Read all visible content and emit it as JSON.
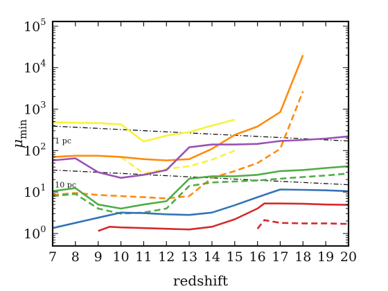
{
  "chart_data": {
    "type": "line",
    "xlabel": "redshift",
    "ylabel": "μ",
    "ylabel_sub": "min",
    "xlim": [
      7,
      20
    ],
    "ylim": [
      0.5,
      130000
    ],
    "yscale": "log",
    "grid": false,
    "x_ticks": [
      7,
      8,
      9,
      10,
      11,
      12,
      13,
      14,
      15,
      16,
      17,
      18,
      19,
      20
    ],
    "y_ticks": [
      {
        "value": 1,
        "base": "10",
        "exp": "0"
      },
      {
        "value": 10,
        "base": "10",
        "exp": "1"
      },
      {
        "value": 100,
        "base": "10",
        "exp": "2"
      },
      {
        "value": 1000,
        "base": "10",
        "exp": "3"
      },
      {
        "value": 10000,
        "base": "10",
        "exp": "4"
      },
      {
        "value": 100000,
        "base": "10",
        "exp": "5"
      }
    ],
    "reference_lines": [
      {
        "label": "1 pc",
        "x": [
          7,
          20
        ],
        "y": [
          390,
          170
        ],
        "label_x": 7.1,
        "label_y": 150
      },
      {
        "label": "10 pc",
        "x": [
          7,
          20
        ],
        "y": [
          34,
          15
        ],
        "label_x": 7.1,
        "label_y": 13
      }
    ],
    "series": [
      {
        "color": "#f7f33a",
        "style": "solid",
        "x": [
          7,
          8,
          9,
          10,
          11,
          12,
          13,
          14,
          15
        ],
        "y": [
          480,
          470,
          460,
          430,
          165,
          230,
          280,
          400,
          560
        ]
      },
      {
        "color": "#f7f33a",
        "style": "dashed",
        "x": [
          10,
          11,
          12,
          13,
          14,
          15
        ],
        "y": [
          70,
          28,
          36,
          42,
          60,
          100
        ]
      },
      {
        "color": "#ff8a0d",
        "style": "solid",
        "x": [
          7,
          8,
          9,
          10,
          11,
          12,
          13,
          14,
          15,
          16,
          17,
          18
        ],
        "y": [
          70,
          75,
          75,
          70,
          62,
          58,
          62,
          110,
          240,
          380,
          850,
          20000
        ]
      },
      {
        "color": "#ff8a0d",
        "style": "dashed",
        "x": [
          7,
          8,
          9,
          10,
          11,
          12,
          13,
          14,
          15,
          16,
          17,
          18
        ],
        "y": [
          8.5,
          9.5,
          8.5,
          8.0,
          7.5,
          7.0,
          8.0,
          22,
          32,
          50,
          110,
          2700
        ]
      },
      {
        "color": "#9b50b4",
        "style": "solid",
        "x": [
          7,
          8,
          9,
          10,
          11,
          12,
          13,
          14,
          15,
          16,
          17,
          18,
          19,
          20
        ],
        "y": [
          58,
          65,
          30,
          22,
          26,
          34,
          120,
          140,
          140,
          145,
          170,
          180,
          195,
          220
        ]
      },
      {
        "color": "#4fad46",
        "style": "solid",
        "x": [
          7,
          8,
          9,
          10,
          11,
          12,
          13,
          14,
          15,
          16,
          17,
          18,
          19,
          20
        ],
        "y": [
          10.5,
          12.5,
          5.0,
          4.0,
          5.0,
          6.0,
          21,
          24,
          24,
          26,
          32,
          34,
          38,
          42
        ]
      },
      {
        "color": "#4fad46",
        "style": "dashed",
        "x": [
          7,
          8,
          9,
          10,
          11,
          12,
          13,
          14,
          15,
          16,
          17,
          18,
          19,
          20
        ],
        "y": [
          8,
          9,
          4.0,
          3.0,
          3.2,
          4.0,
          14,
          17,
          18,
          19,
          21,
          23,
          25,
          28
        ]
      },
      {
        "color": "#3473b5",
        "style": "solid",
        "x": [
          7,
          8,
          9,
          10,
          11,
          12,
          13,
          14,
          15,
          16,
          17,
          18,
          19,
          20
        ],
        "y": [
          1.35,
          1.8,
          2.4,
          3.2,
          3.1,
          2.9,
          2.8,
          3.2,
          4.8,
          7.5,
          11.5,
          11.3,
          11,
          10.5
        ]
      },
      {
        "color": "#d42a2a",
        "style": "solid",
        "x": [
          9,
          9.5,
          10,
          11,
          12,
          13,
          14,
          15,
          16,
          16.3,
          17,
          18,
          19,
          20
        ],
        "y": [
          1.15,
          1.45,
          1.4,
          1.35,
          1.3,
          1.25,
          1.45,
          2.2,
          4.0,
          5.3,
          5.3,
          5.2,
          5.0,
          4.9
        ]
      },
      {
        "color": "#d42a2a",
        "style": "dashed",
        "x": [
          16,
          16.3,
          17,
          18,
          19,
          20
        ],
        "y": [
          1.3,
          2.1,
          1.8,
          1.75,
          1.75,
          1.7
        ]
      }
    ]
  }
}
